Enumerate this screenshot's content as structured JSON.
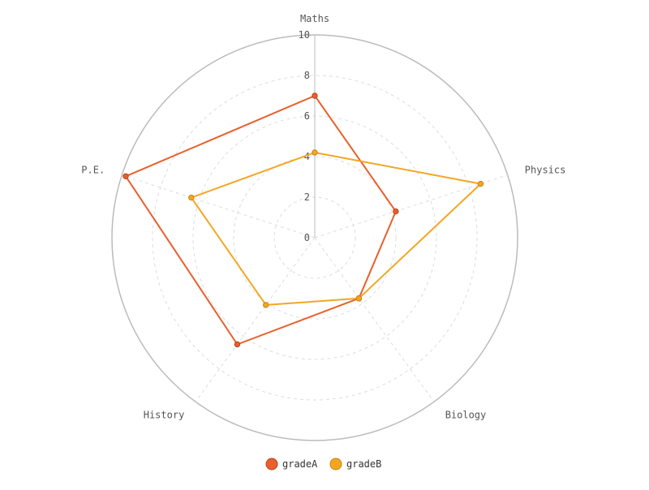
{
  "chart_data": {
    "type": "radar",
    "axes": [
      "Maths",
      "Physics",
      "Biology",
      "History",
      "P.E."
    ],
    "rlim": [
      0,
      10
    ],
    "ticks": [
      "0",
      "2",
      "4",
      "6",
      "8",
      "10"
    ],
    "tick_values": [
      0,
      2,
      4,
      6,
      8,
      10
    ],
    "grid": true,
    "legend_position": "bottom",
    "series": [
      {
        "name": "gradeA",
        "values": [
          7,
          4.2,
          3.7,
          6.5,
          9.8
        ],
        "color": "#e8602c"
      },
      {
        "name": "gradeB",
        "values": [
          4.2,
          8.6,
          3.7,
          4.1,
          6.4
        ],
        "color": "#f4a623"
      }
    ]
  }
}
